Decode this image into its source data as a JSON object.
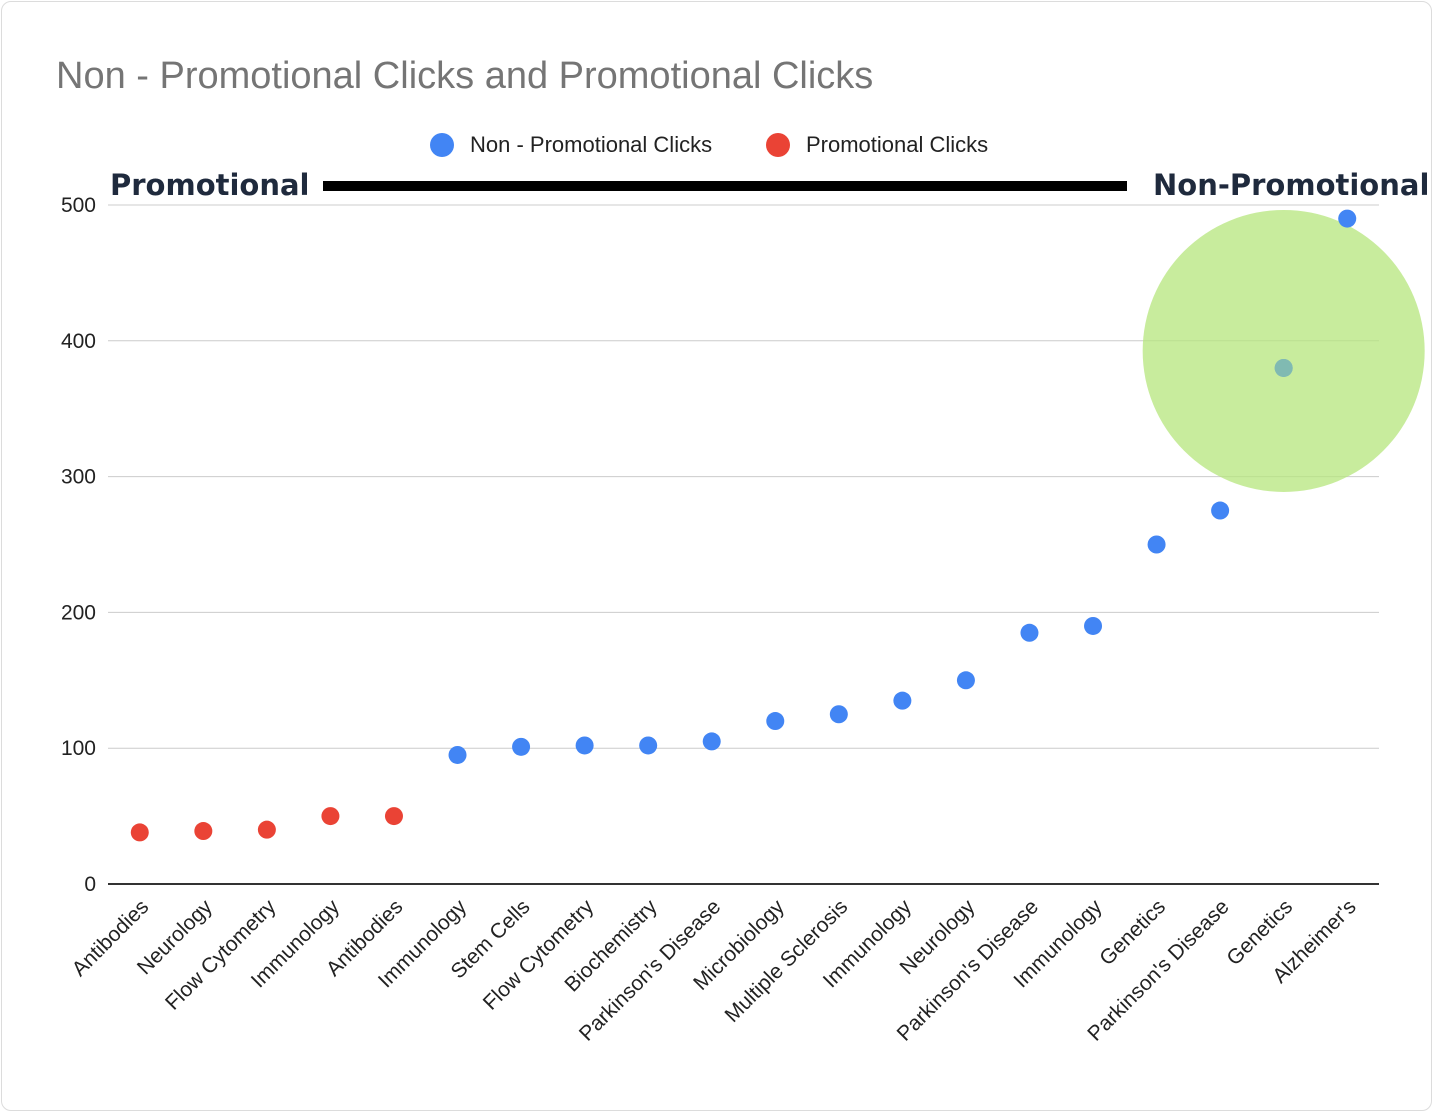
{
  "chart_data": {
    "type": "scatter",
    "title": "Non - Promotional Clicks and Promotional Clicks",
    "xlabel": "",
    "ylabel": "",
    "ylim": [
      0,
      500
    ],
    "yticks": [
      0,
      100,
      200,
      300,
      400,
      500
    ],
    "grid": true,
    "legend_position": "top",
    "categories": [
      "Antibodies",
      "Neurology",
      "Flow Cytometry",
      "Immunology",
      "Antibodies",
      "Immunology",
      "Stem Cells",
      "Flow Cytometry",
      "Biochemistry",
      "Parkinson's Disease",
      "Microbiology",
      "Multiple Sclerosis",
      "Immunology",
      "Neurology",
      "Parkinson's Disease",
      "Immunology",
      "Genetics",
      "Parkinson's Disease",
      "Genetics",
      "Alzheimer's"
    ],
    "series": [
      {
        "name": "Non - Promotional Clicks",
        "color": "#4285f4",
        "values": [
          null,
          null,
          null,
          null,
          null,
          95,
          101,
          102,
          102,
          105,
          120,
          125,
          135,
          150,
          185,
          190,
          250,
          275,
          380,
          490
        ]
      },
      {
        "name": "Promotional Clicks",
        "color": "#ea4335",
        "values": [
          38,
          39,
          40,
          50,
          50,
          null,
          null,
          null,
          null,
          null,
          null,
          null,
          null,
          null,
          null,
          null,
          null,
          null,
          null,
          null
        ]
      }
    ],
    "annotations": {
      "left_label": "Promotional",
      "right_label": "Non-Promotional",
      "highlight_category_index": 18,
      "highlight_color": "#b5e67c"
    }
  }
}
